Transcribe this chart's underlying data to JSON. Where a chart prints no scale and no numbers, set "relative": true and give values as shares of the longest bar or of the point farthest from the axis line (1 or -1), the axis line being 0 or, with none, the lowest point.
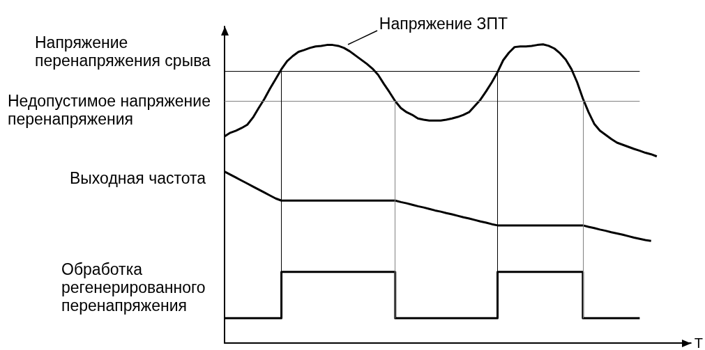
{
  "chart_data": {
    "type": "line",
    "relative": true,
    "xlabel": "T",
    "grid": "x",
    "categories": [
      null,
      null,
      null,
      null,
      null,
      null,
      null,
      null,
      null,
      null,
      null,
      null,
      null,
      null,
      null,
      null,
      null,
      null,
      null,
      null,
      null,
      null,
      null,
      null,
      null,
      null,
      null,
      null,
      null,
      null,
      null,
      null,
      null,
      null,
      null,
      null,
      null,
      null,
      null,
      null,
      null,
      null,
      null,
      null,
      null,
      null,
      null,
      null,
      null,
      null,
      null,
      null,
      null,
      null,
      null,
      null,
      null,
      null,
      null,
      null,
      null,
      null,
      null,
      null,
      null,
      null,
      null,
      null,
      null,
      null,
      null,
      null,
      null,
      null,
      null,
      null,
      null,
      null,
      null,
      null,
      null,
      null,
      null
    ],
    "series": [
      {
        "name": "Напряжение ЗПТ",
        "color": "#000000",
        "values": [
          0.692,
          0.704,
          0.711,
          0.72,
          0.731,
          0.755,
          0.787,
          0.817,
          0.852,
          0.884,
          0.917,
          0.944,
          0.961,
          0.975,
          0.981,
          0.988,
          0.993,
          0.995,
          0.998,
          0.998,
          0.995,
          0.988,
          0.977,
          0.963,
          0.949,
          0.935,
          0.919,
          0.898,
          0.868,
          0.84,
          0.81,
          0.787,
          0.773,
          0.764,
          0.752,
          0.748,
          0.745,
          0.745,
          0.745,
          0.748,
          0.752,
          0.757,
          0.764,
          0.773,
          0.794,
          0.815,
          0.843,
          0.873,
          0.907,
          0.947,
          0.972,
          0.991,
          0.993,
          0.993,
          0.995,
          0.998,
          1,
          0.995,
          0.986,
          0.97,
          0.949,
          0.917,
          0.873,
          0.819,
          0.773,
          0.734,
          0.711,
          0.697,
          0.683,
          0.671,
          0.664,
          0.657,
          0.65,
          0.644,
          0.637,
          0.632,
          0.625,
          null,
          null,
          null,
          null,
          null,
          null
        ]
      },
      {
        "name": "Выходная частота",
        "color": "#000000",
        "values": [
          0.574,
          0.564,
          0.554,
          0.544,
          0.534,
          0.524,
          0.514,
          0.504,
          0.494,
          0.484,
          0.477,
          0.477,
          0.477,
          0.477,
          0.477,
          0.477,
          0.477,
          0.477,
          0.477,
          0.477,
          0.477,
          0.477,
          0.477,
          0.477,
          0.477,
          0.477,
          0.477,
          0.477,
          0.477,
          0.477,
          0.477,
          0.472,
          0.468,
          0.463,
          0.458,
          0.454,
          0.449,
          0.444,
          0.44,
          0.435,
          0.431,
          0.426,
          0.421,
          0.417,
          0.412,
          0.407,
          0.403,
          0.398,
          0.394,
          0.394,
          0.394,
          0.394,
          0.394,
          0.394,
          0.394,
          0.394,
          0.394,
          0.394,
          0.394,
          0.394,
          0.394,
          0.394,
          0.394,
          0.394,
          0.389,
          0.385,
          0.38,
          0.376,
          0.371,
          0.367,
          0.363,
          0.358,
          0.353,
          0.349,
          0.345,
          0.342,
          null,
          null,
          null,
          null,
          null,
          null,
          null
        ]
      },
      {
        "type": "step",
        "name": "Обработка\nрегенерированного\nперенапряжения",
        "color": "#000000",
        "values": [
          0.083,
          0.083,
          0.083,
          0.083,
          0.083,
          0.083,
          0.083,
          0.083,
          0.083,
          0.083,
          0.238,
          0.238,
          0.238,
          0.238,
          0.238,
          0.238,
          0.238,
          0.238,
          0.238,
          0.238,
          0.238,
          0.238,
          0.238,
          0.238,
          0.238,
          0.238,
          0.238,
          0.238,
          0.238,
          0.238,
          0.083,
          0.083,
          0.083,
          0.083,
          0.083,
          0.083,
          0.083,
          0.083,
          0.083,
          0.083,
          0.083,
          0.083,
          0.083,
          0.083,
          0.083,
          0.083,
          0.083,
          0.083,
          0.238,
          0.238,
          0.238,
          0.238,
          0.238,
          0.238,
          0.238,
          0.238,
          0.238,
          0.238,
          0.238,
          0.238,
          0.238,
          0.238,
          0.238,
          0.083,
          0.083,
          0.083,
          0.083,
          0.083,
          0.083,
          0.083,
          0.083,
          0.083,
          0.083,
          0.083,
          null,
          null,
          null,
          null,
          null,
          null,
          null,
          null,
          null
        ]
      }
    ],
    "ref_lines": [
      {
        "axis": "y",
        "value": 0.91,
        "label": "Напряжение\nперенапряжения срыва",
        "color": "#000000"
      },
      {
        "axis": "y",
        "value": 0.81,
        "label": "Недопустимое напряжение\nперенапряжения",
        "color": "#808080"
      }
    ]
  }
}
